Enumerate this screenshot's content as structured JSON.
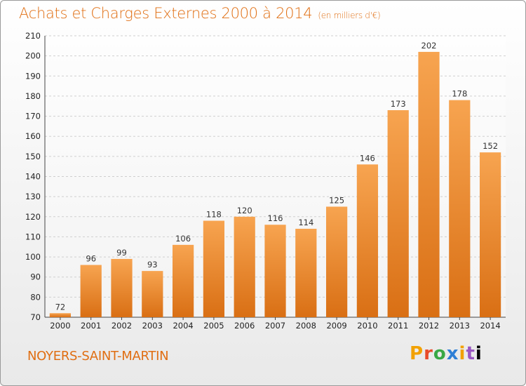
{
  "header": {
    "title": "Achats et Charges Externes 2000 à 2014",
    "subtitle": "(en milliers d'€)"
  },
  "footer": {
    "commune": "NOYERS-SAINT-MARTIN",
    "logo_letters": [
      "P",
      "r",
      "o",
      "x",
      "i",
      "t",
      "i"
    ]
  },
  "chart_data": {
    "type": "bar",
    "title": "Achats et Charges Externes 2000 à 2014",
    "subtitle": "(en milliers d'€)",
    "categories": [
      "2000",
      "2001",
      "2002",
      "2003",
      "2004",
      "2005",
      "2006",
      "2007",
      "2008",
      "2009",
      "2010",
      "2011",
      "2012",
      "2013",
      "2014"
    ],
    "values": [
      72,
      96,
      99,
      93,
      106,
      118,
      120,
      116,
      114,
      125,
      146,
      173,
      202,
      178,
      152
    ],
    "xlabel": "",
    "ylabel": "",
    "ylim": [
      70,
      210
    ],
    "yticks": [
      70,
      80,
      90,
      100,
      110,
      120,
      130,
      140,
      150,
      160,
      170,
      180,
      190,
      200,
      210
    ],
    "grid": true,
    "bar_color_top": "#f7a450",
    "bar_color_bottom": "#d96f14"
  }
}
